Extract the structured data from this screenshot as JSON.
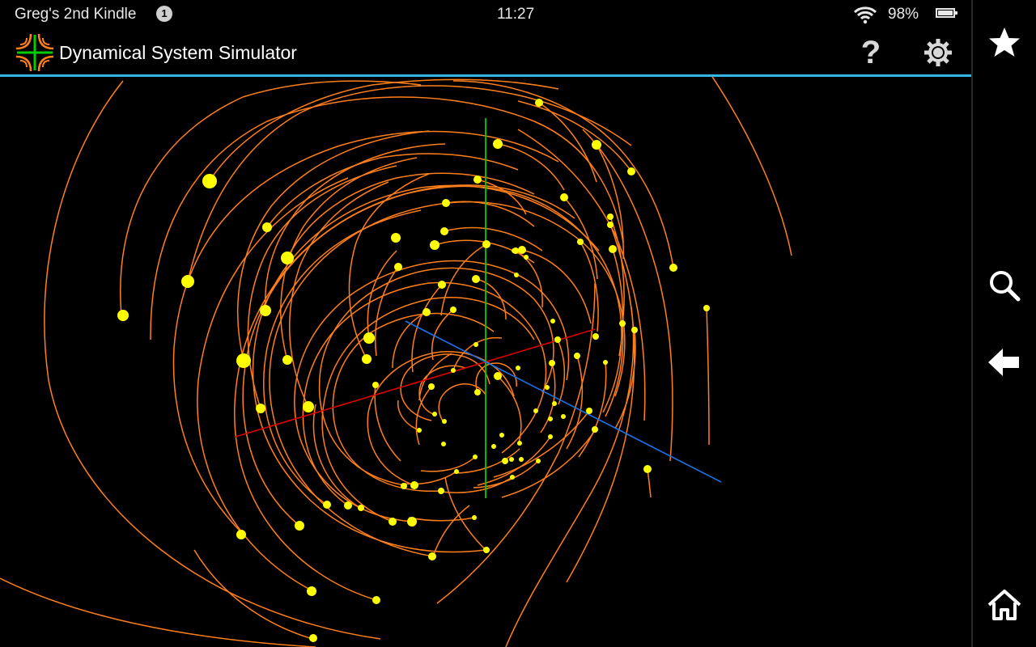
{
  "status_bar": {
    "device_name": "Greg's 2nd Kindle",
    "notification_count": "1",
    "time": "11:27",
    "battery": "98%"
  },
  "app": {
    "title": "Dynamical System Simulator",
    "logo_icon": "crosshair-trajectory-logo",
    "help_icon": "question-mark-icon",
    "settings_icon": "gear-icon"
  },
  "navigation": {
    "items": [
      "star-icon",
      "search-icon",
      "back-arrow-icon",
      "home-icon"
    ]
  },
  "colors": {
    "background": "#000000",
    "trajectory": "#ff7f1a",
    "particle": "#ffff00",
    "axis_x": "#e00000",
    "axis_y": "#00cc00",
    "axis_z": "#1a73e8",
    "accent": "#33b5e5"
  }
}
